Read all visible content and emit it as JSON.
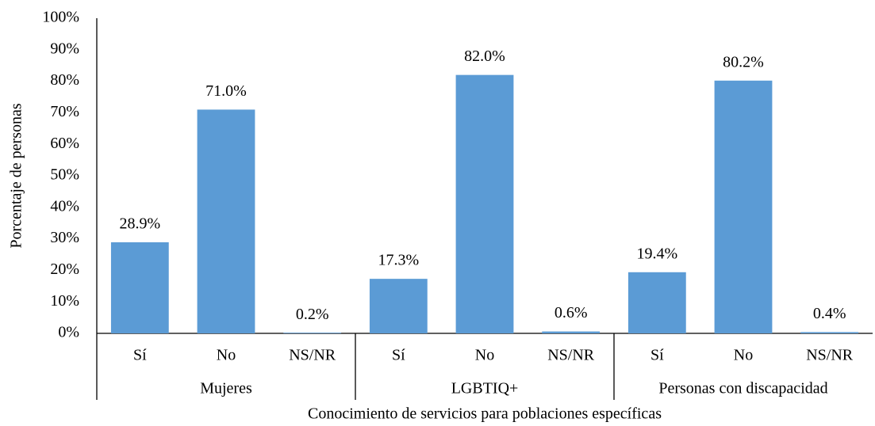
{
  "chart_data": {
    "type": "bar",
    "x_label": "Conocimiento de servicios para poblaciones específicas",
    "y_label": "Porcentaje de personas",
    "groups": [
      "Mujeres",
      "LGBTIQ+",
      "Personas con discapacidad"
    ],
    "categories": [
      "Sí",
      "No",
      "NS/NR",
      "Sí",
      "No",
      "NS/NR",
      "Sí",
      "No",
      "NS/NR"
    ],
    "values": [
      28.9,
      71.0,
      0.2,
      17.3,
      82.0,
      0.6,
      19.4,
      80.2,
      0.4
    ],
    "value_labels": [
      "28.9%",
      "71.0%",
      "0.2%",
      "17.3%",
      "82.0%",
      "0.6%",
      "19.4%",
      "80.2%",
      "0.4%"
    ],
    "color": "#5b9bd5",
    "ylim": [
      0,
      100
    ],
    "yticks": [
      {
        "value": 0,
        "label": "0%"
      },
      {
        "value": 10,
        "label": "10%"
      },
      {
        "value": 20,
        "label": "20%"
      },
      {
        "value": 30,
        "label": "30%"
      },
      {
        "value": 40,
        "label": "40%"
      },
      {
        "value": 50,
        "label": "50%"
      },
      {
        "value": 60,
        "label": "60%"
      },
      {
        "value": 70,
        "label": "70%"
      },
      {
        "value": 80,
        "label": "80%"
      },
      {
        "value": 90,
        "label": "90%"
      },
      {
        "value": 100,
        "label": "100%"
      }
    ],
    "grid": false
  }
}
